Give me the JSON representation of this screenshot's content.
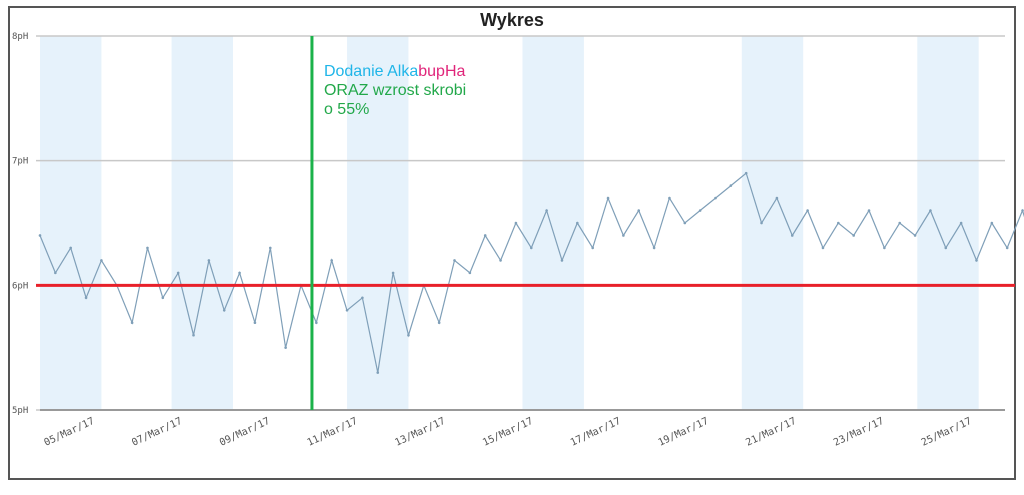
{
  "chart_data": {
    "type": "line",
    "title": "Wykres",
    "xlabel": "",
    "ylabel": "",
    "y_unit": "pH",
    "y_ticks": [
      {
        "value": 8,
        "label": "8pH"
      },
      {
        "value": 7,
        "label": "7pH"
      },
      {
        "value": 6,
        "label": "6pH"
      },
      {
        "value": 5,
        "label": "5pH"
      }
    ],
    "ylim": [
      5,
      8
    ],
    "x_tick_labels": [
      "05/Mar/17",
      "07/Mar/17",
      "09/Mar/17",
      "11/Mar/17",
      "13/Mar/17",
      "15/Mar/17",
      "17/Mar/17",
      "19/Mar/17",
      "21/Mar/17",
      "23/Mar/17",
      "25/Mar/17"
    ],
    "xlim": [
      "04/Mar/17",
      "26/Mar/17"
    ],
    "series": [
      {
        "color": "#7f9fb8",
        "x_days_from_start": [
          0.0,
          0.35,
          0.7,
          1.05,
          1.4,
          1.75,
          2.1,
          2.45,
          2.8,
          3.15,
          3.5,
          3.85,
          4.2,
          4.55,
          4.9,
          5.25,
          5.6,
          5.95,
          6.3,
          6.65,
          7.0,
          7.35,
          7.7,
          8.05,
          8.4,
          8.75,
          9.1,
          9.45,
          9.8,
          10.15,
          10.5,
          10.85,
          11.2,
          11.55,
          11.9,
          12.25,
          12.6,
          12.95,
          13.3,
          13.65,
          14.0,
          14.35,
          14.7,
          15.05,
          15.4,
          15.75,
          16.1,
          16.45,
          16.8,
          17.15,
          17.5,
          17.85,
          18.2,
          18.55,
          18.9,
          19.25,
          19.6,
          19.95,
          20.3,
          20.65,
          21.0,
          21.35,
          21.7,
          22.05,
          22.4,
          22.75,
          23.1,
          23.45
        ],
        "values": [
          6.4,
          6.1,
          6.3,
          5.9,
          6.2,
          6.0,
          5.7,
          6.3,
          5.9,
          6.1,
          5.6,
          6.2,
          5.8,
          6.1,
          5.7,
          6.3,
          5.5,
          6.0,
          5.7,
          6.2,
          5.8,
          5.9,
          5.3,
          6.1,
          5.6,
          6.0,
          5.7,
          6.2,
          6.1,
          6.4,
          6.2,
          6.5,
          6.3,
          6.6,
          6.2,
          6.5,
          6.3,
          6.7,
          6.4,
          6.6,
          6.3,
          6.7,
          6.5,
          6.6,
          6.7,
          6.8,
          6.9,
          6.5,
          6.7,
          6.4,
          6.6,
          6.3,
          6.5,
          6.4,
          6.6,
          6.3,
          6.5,
          6.4,
          6.6,
          6.3,
          6.5,
          6.2,
          6.5,
          6.3,
          6.6,
          6.2,
          6.5,
          6.4
        ]
      }
    ],
    "reference_lines": [
      {
        "type": "horizontal",
        "value": 6,
        "color": "#e8202a"
      },
      {
        "type": "vertical",
        "at": "10/Mar/17",
        "color": "#1bb24a"
      }
    ],
    "shaded_bands_color": "#e6f2fb",
    "annotation": {
      "segments": [
        {
          "text": "Dodanie Alka",
          "color": "#1fb5e8"
        },
        {
          "text": "bupHa",
          "color": "#e0257a"
        }
      ],
      "line2": {
        "text": "ORAZ wzrost skrobi",
        "color": "#22a84a"
      },
      "line3": {
        "text": "o 55%",
        "color": "#22a84a"
      }
    },
    "grid": true,
    "legend": "none"
  }
}
